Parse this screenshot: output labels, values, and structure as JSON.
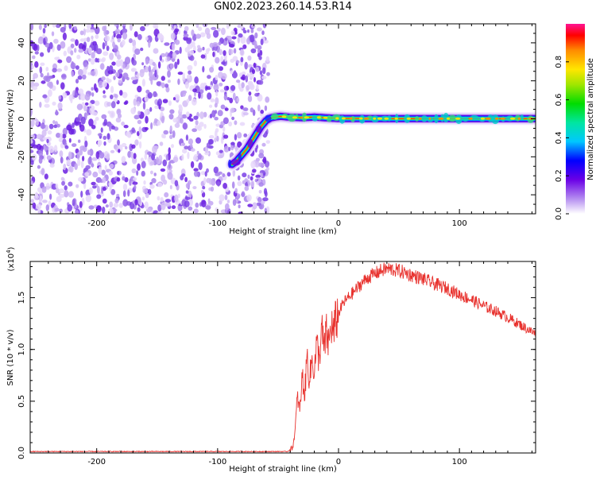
{
  "title": "GN02.2023.260.14.53.R14",
  "chart_data": [
    {
      "type": "heatmap",
      "xlabel": "Height of straight line (km)",
      "ylabel": "Frequency (Hz)",
      "xlim": [
        -255,
        163
      ],
      "ylim": [
        -50,
        50
      ],
      "xticks": [
        -200,
        -100,
        0,
        100
      ],
      "yticks": [
        -40,
        -20,
        0,
        20,
        40
      ],
      "noise_region": {
        "x": [
          -255,
          -62
        ],
        "y": [
          -50,
          50
        ]
      },
      "ridge": {
        "x": [
          -88,
          -84,
          -80,
          -76,
          -72,
          -68,
          -64,
          -60,
          -56,
          -52,
          -48,
          -44,
          -40,
          -30,
          -20,
          -10,
          0,
          40,
          80,
          120,
          163
        ],
        "y": [
          -24,
          -22,
          -19,
          -16,
          -12,
          -8,
          -4,
          -1,
          0.5,
          1,
          1.3,
          1.1,
          0.8,
          0.6,
          0.9,
          0.5,
          0.2,
          0.1,
          0.1,
          0.1,
          0.1
        ]
      },
      "colorbar": {
        "label": "Normalized spectral amplitude",
        "ticks": [
          "0.0",
          "0.2",
          "0.4",
          "0.6",
          "0.8"
        ],
        "range": [
          0,
          1
        ]
      }
    },
    {
      "type": "line",
      "xlabel": "Height of straight line (km)",
      "ylabel": "SNR (10 * v/v)",
      "scale_label_base": "(x10",
      "scale_label_exp": "4",
      "xlim": [
        -255,
        163
      ],
      "ylim": [
        0,
        1.85
      ],
      "xticks": [
        -200,
        -100,
        0,
        100
      ],
      "yticks": [
        "0.0",
        "0.5",
        "1.0",
        "1.5"
      ],
      "series": [
        {
          "color": "#e8322e",
          "x": [
            -255,
            -200,
            -100,
            -42,
            -38,
            -36,
            -34,
            -32,
            -30,
            -28,
            -26,
            -24,
            -22,
            -20,
            -18,
            -16,
            -14,
            -12,
            -10,
            -8,
            -6,
            -4,
            -2,
            0,
            4,
            8,
            12,
            16,
            20,
            25,
            30,
            35,
            40,
            45,
            50,
            60,
            70,
            80,
            90,
            100,
            110,
            120,
            130,
            140,
            150,
            160,
            163
          ],
          "y": [
            0.01,
            0.01,
            0.01,
            0.01,
            0.05,
            0.2,
            0.55,
            0.4,
            0.75,
            0.55,
            0.95,
            0.7,
            0.9,
            0.8,
            1.05,
            0.9,
            1.2,
            1.0,
            1.15,
            1.05,
            1.25,
            1.15,
            1.3,
            1.35,
            1.45,
            1.5,
            1.55,
            1.6,
            1.65,
            1.7,
            1.73,
            1.76,
            1.78,
            1.77,
            1.76,
            1.72,
            1.68,
            1.63,
            1.59,
            1.53,
            1.48,
            1.42,
            1.37,
            1.31,
            1.24,
            1.17,
            1.15
          ]
        }
      ]
    }
  ]
}
